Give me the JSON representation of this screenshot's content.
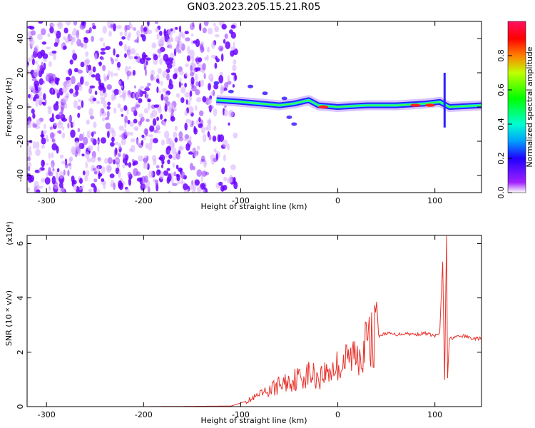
{
  "title": "GN03.2023.205.15.21.R05",
  "colors": {
    "snr_line": "#e8312a",
    "spectrogram_background": "#ffffff",
    "noise_light": "#d9b3ff",
    "noise_dark": "#6a00ff"
  },
  "chart_data": [
    {
      "type": "heatmap",
      "name": "spectrogram",
      "xlabel": "Height of straight line (km)",
      "ylabel": "Frequency (Hz)",
      "xlim": [
        -320,
        148
      ],
      "ylim": [
        -50,
        50
      ],
      "x_ticks": [
        -300,
        -200,
        -100,
        0,
        100
      ],
      "y_ticks": [
        -40,
        -20,
        0,
        20,
        40
      ],
      "colorbar": {
        "label": "Normalized spectral amplitude",
        "range": [
          0.0,
          1.0
        ],
        "ticks": [
          0.0,
          0.2,
          0.4,
          0.6,
          0.8
        ],
        "colormap": "rainbow"
      },
      "noise_region_x": [
        -320,
        -105
      ],
      "signal_track": [
        {
          "x": -125,
          "f": 4
        },
        {
          "x": -100,
          "f": 3
        },
        {
          "x": -80,
          "f": 2
        },
        {
          "x": -60,
          "f": 1
        },
        {
          "x": -45,
          "f": 2
        },
        {
          "x": -30,
          "f": 4
        },
        {
          "x": -20,
          "f": 1
        },
        {
          "x": 0,
          "f": 0
        },
        {
          "x": 30,
          "f": 1
        },
        {
          "x": 60,
          "f": 1
        },
        {
          "x": 90,
          "f": 2
        },
        {
          "x": 105,
          "f": 3
        },
        {
          "x": 115,
          "f": 0
        },
        {
          "x": 148,
          "f": 1
        }
      ]
    },
    {
      "type": "line",
      "name": "snr",
      "xlabel": "Height of straight line (km)",
      "ylabel": "SNR (10 * v/v)",
      "y_multiplier_label": "(x10⁴)",
      "xlim": [
        -320,
        148
      ],
      "ylim": [
        0,
        6.3
      ],
      "x_ticks": [
        -300,
        -200,
        -100,
        0,
        100
      ],
      "y_ticks": [
        0,
        2,
        4,
        6
      ],
      "series": [
        {
          "x": [
            -320,
            -200,
            -110,
            -90,
            -75,
            -60,
            -45,
            -30,
            -20,
            -10,
            0,
            10,
            20,
            30,
            38,
            40,
            42,
            50,
            60,
            70,
            80,
            90,
            100,
            105,
            108,
            110,
            112,
            113,
            115,
            120,
            130,
            140,
            148
          ],
          "y": [
            0.0,
            0.0,
            0.02,
            0.25,
            0.5,
            0.8,
            1.0,
            1.2,
            1.1,
            1.3,
            1.5,
            1.7,
            2.0,
            2.3,
            2.6,
            3.9,
            2.6,
            2.7,
            2.65,
            2.7,
            2.65,
            2.7,
            2.6,
            2.7,
            5.3,
            1.0,
            6.3,
            1.0,
            2.5,
            2.55,
            2.6,
            2.5,
            2.5
          ]
        }
      ]
    }
  ]
}
